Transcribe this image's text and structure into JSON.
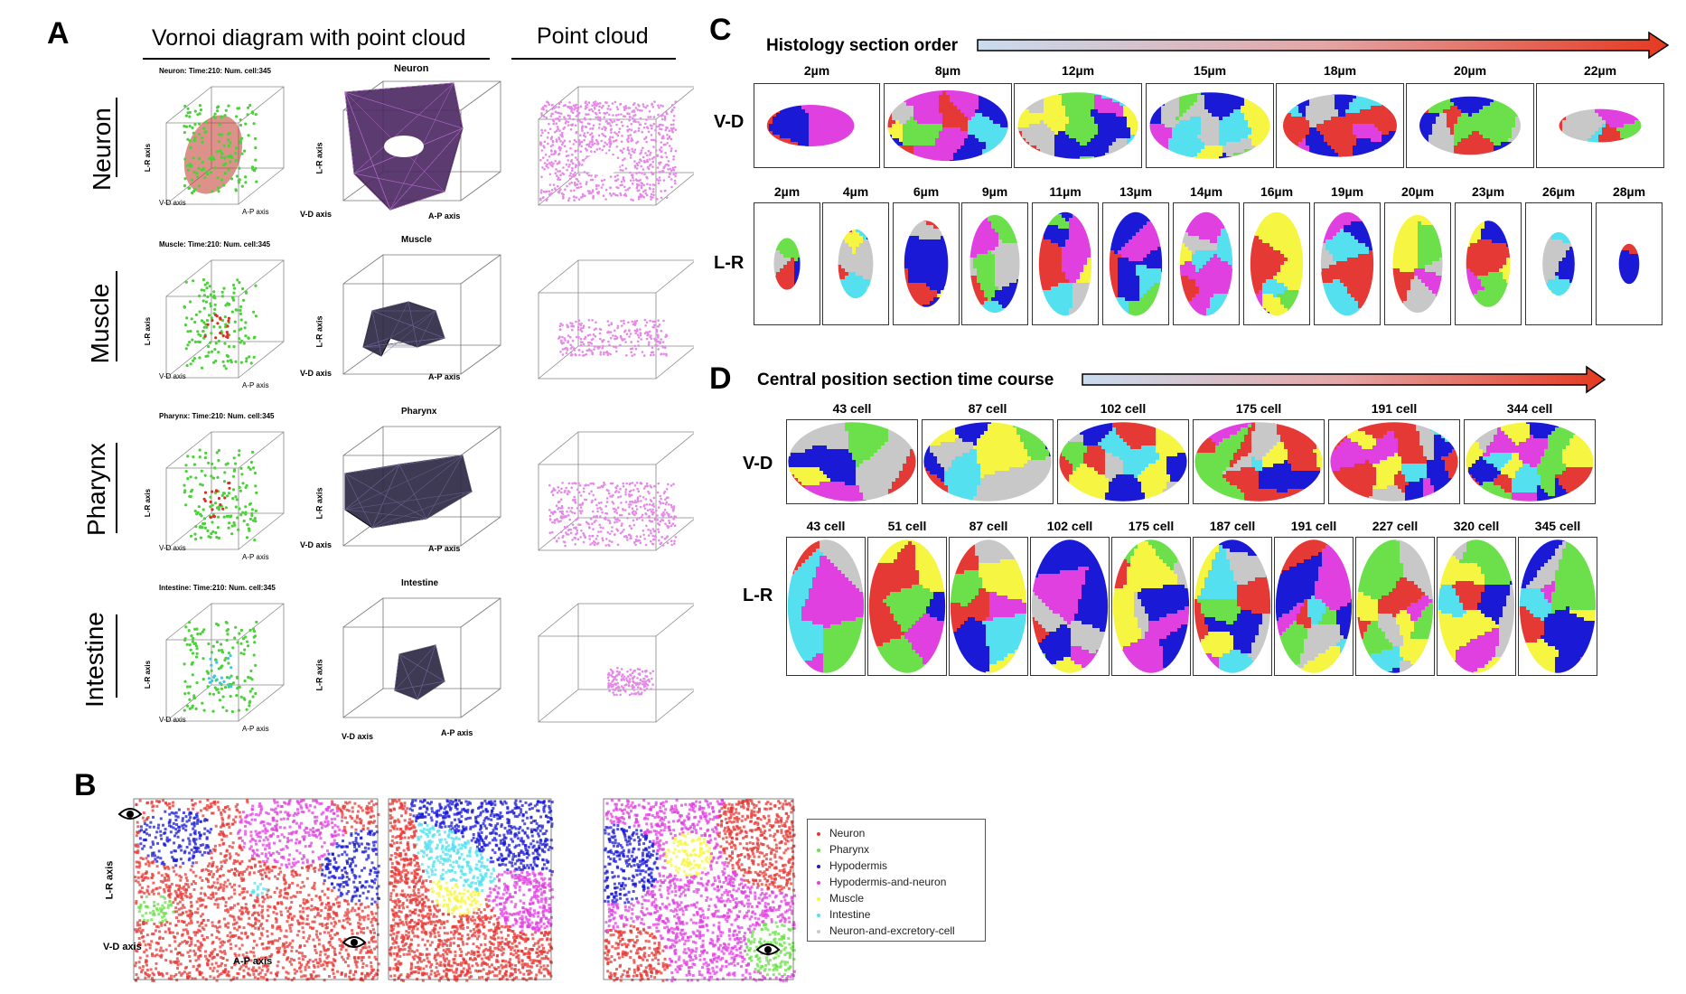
{
  "panels": {
    "a": "A",
    "b": "B",
    "c": "C",
    "d": "D"
  },
  "panel_a": {
    "col_headers": [
      "Vornoi diagram with point cloud",
      "Point cloud"
    ],
    "rows": [
      {
        "label": "Neuron",
        "small_title": "Neuron: Time:210: Num. cell:345",
        "mesh_title": "Neuron",
        "color": "#d93025"
      },
      {
        "label": "Muscle",
        "small_title": "Muscle: Time:210: Num. cell:345",
        "mesh_title": "Muscle",
        "color": "#d93025"
      },
      {
        "label": "Pharynx",
        "small_title": "Pharynx: Time:210: Num. cell:345",
        "mesh_title": "Pharynx",
        "color": "#d93025"
      },
      {
        "label": "Intestine",
        "small_title": "Intestine: Time:210: Num. cell:345",
        "mesh_title": "Intestine",
        "color": "#3ec6e0"
      }
    ],
    "axes": {
      "lr": "L-R axis",
      "vd": "V-D axis",
      "ap": "A-P axis"
    }
  },
  "panel_b": {
    "axes": {
      "lr": "L-R axis",
      "vd": "V-D axis",
      "ap": "A-P axis"
    },
    "legend": [
      {
        "name": "Neuron",
        "color": "#e53935"
      },
      {
        "name": "Pharynx",
        "color": "#6be04a"
      },
      {
        "name": "Hypodermis",
        "color": "#1a1ad6"
      },
      {
        "name": "Hypodermis-and-neuron",
        "color": "#e040e0"
      },
      {
        "name": "Muscle",
        "color": "#f5f542"
      },
      {
        "name": "Intestine",
        "color": "#55e0f0"
      },
      {
        "name": "Neuron-and-excretory-cell",
        "color": "#c8c8c8"
      }
    ]
  },
  "panel_c": {
    "title": "Histology section order",
    "vd_tag": "V-D",
    "lr_tag": "L-R",
    "vd_labels": [
      "2µm",
      "8µm",
      "12µm",
      "15µm",
      "18µm",
      "20µm",
      "22µm"
    ],
    "lr_labels": [
      "2µm",
      "4µm",
      "6µm",
      "9µm",
      "11µm",
      "13µm",
      "14µm",
      "16µm",
      "19µm",
      "20µm",
      "23µm",
      "26µm",
      "28µm"
    ]
  },
  "panel_d": {
    "title": "Central position section time course",
    "vd_tag": "V-D",
    "lr_tag": "L-R",
    "vd_labels": [
      "43 cell",
      "87 cell",
      "102 cell",
      "175 cell",
      "191 cell",
      "344 cell"
    ],
    "lr_labels": [
      "43 cell",
      "51 cell",
      "87 cell",
      "102 cell",
      "175 cell",
      "187 cell",
      "191 cell",
      "227 cell",
      "320 cell",
      "345 cell"
    ]
  },
  "colors": {
    "neuron": "#e53935",
    "pharynx": "#6be04a",
    "hypodermis": "#1a1ad6",
    "hyp_neuron": "#e040e0",
    "muscle": "#f5f542",
    "intestine": "#55e0f0",
    "excretory": "#c8c8c8",
    "mesh": "#2a2540",
    "cloud": "#e58ae8",
    "arrow_start": "#c9dcef",
    "arrow_end": "#e53920"
  }
}
